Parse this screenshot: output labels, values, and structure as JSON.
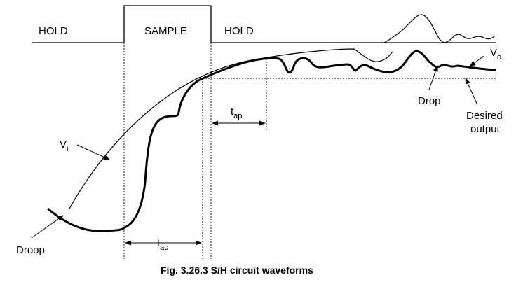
{
  "timing": {
    "hold_left": "HOLD",
    "sample": "SAMPLE",
    "hold_right": "HOLD"
  },
  "labels": {
    "vo_main": "V",
    "vo_sub": "o",
    "vi_main": "V",
    "vi_sub": "i",
    "drop": "Drop",
    "desired_line1": "Desired",
    "desired_line2": "output",
    "droop": "Droop",
    "tap_main": "t",
    "tap_sub": "ap",
    "tac_main": "t",
    "tac_sub": "ac"
  },
  "caption": "Fig. 3.26.3 S/H circuit waveforms",
  "colors": {
    "stroke": "#000000",
    "background": "#ffffff"
  }
}
